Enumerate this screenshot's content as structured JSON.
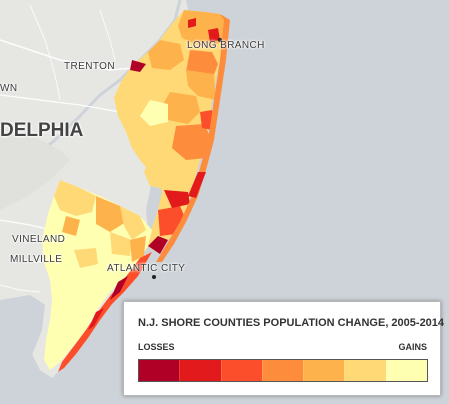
{
  "map": {
    "cities": [
      {
        "name": "TRENTON"
      },
      {
        "name": "LONG BRANCH"
      },
      {
        "name": "DELPHIA"
      },
      {
        "name": "WN"
      },
      {
        "name": "VINELAND"
      },
      {
        "name": "MILLVILLE"
      },
      {
        "name": "ATLANTIC CITY"
      }
    ]
  },
  "legend": {
    "title": "N.J. SHORE COUNTIES POPULATION CHANGE, 2005-2014",
    "low_label": "LOSSES",
    "high_label": "GAINS",
    "colors": [
      "#b10026",
      "#e31a1c",
      "#fc4e2a",
      "#fd8d3c",
      "#feb24c",
      "#fed976",
      "#ffffb2"
    ]
  }
}
